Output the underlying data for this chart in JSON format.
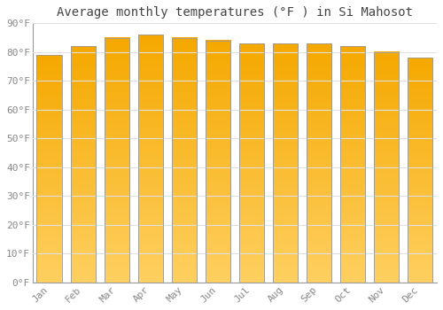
{
  "title": "Average monthly temperatures (°F ) in Si Mahosot",
  "months": [
    "Jan",
    "Feb",
    "Mar",
    "Apr",
    "May",
    "Jun",
    "Jul",
    "Aug",
    "Sep",
    "Oct",
    "Nov",
    "Dec"
  ],
  "values": [
    79,
    82,
    85,
    86,
    85,
    84,
    83,
    83,
    83,
    82,
    80,
    78
  ],
  "bar_color_bottom": "#FFD060",
  "bar_color_top": "#F5A800",
  "bar_edge_color": "#999999",
  "ylim": [
    0,
    90
  ],
  "yticks": [
    0,
    10,
    20,
    30,
    40,
    50,
    60,
    70,
    80,
    90
  ],
  "ytick_labels": [
    "0°F",
    "10°F",
    "20°F",
    "30°F",
    "40°F",
    "50°F",
    "60°F",
    "70°F",
    "80°F",
    "90°F"
  ],
  "background_color": "#ffffff",
  "plot_bg_color": "#ffffff",
  "grid_color": "#e0e0e0",
  "title_fontsize": 10,
  "tick_fontsize": 8,
  "title_color": "#444444",
  "tick_color": "#888888",
  "font_family": "monospace",
  "bar_width": 0.75,
  "n_grad": 80
}
